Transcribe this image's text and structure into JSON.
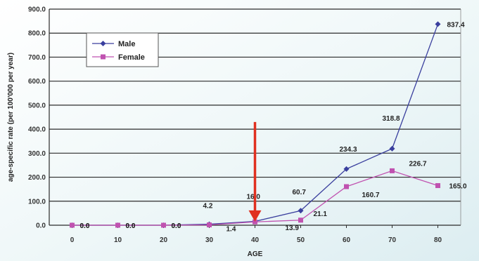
{
  "chart_data": {
    "type": "line",
    "xlabel": "AGE",
    "ylabel": "age-specific rate (per 100'000 per year)",
    "x": [
      0,
      10,
      20,
      30,
      40,
      50,
      60,
      70,
      80
    ],
    "xlim": [
      -5,
      85
    ],
    "ylim": [
      0,
      900
    ],
    "y_ticks": [
      "0.0",
      "100.0",
      "200.0",
      "300.0",
      "400.0",
      "500.0",
      "600.0",
      "700.0",
      "800.0",
      "900.0"
    ],
    "y_tick_values": [
      0,
      100,
      200,
      300,
      400,
      500,
      600,
      700,
      800,
      900
    ],
    "grid": true,
    "legend": "top-left",
    "series": [
      {
        "name": "Male",
        "color": "#3a3f9e",
        "marker": "diamond",
        "values": [
          0.0,
          0.0,
          0.0,
          4.2,
          16.0,
          60.7,
          234.3,
          318.8,
          837.4
        ],
        "labels": [
          "0.0",
          "0.0",
          "0.0",
          "4.2",
          "16.0",
          "60.7",
          "234.3",
          "318.8",
          "837.4"
        ]
      },
      {
        "name": "Female",
        "color": "#c052b0",
        "marker": "square",
        "values": [
          0.0,
          0.0,
          0.0,
          1.4,
          13.9,
          21.1,
          160.7,
          226.7,
          165.0
        ],
        "labels": [
          "0.0",
          "0.0",
          "0.0",
          "1.4",
          "13.9",
          "21.1",
          "160.7",
          "226.7",
          "165.0"
        ]
      }
    ],
    "annotations": [
      {
        "type": "arrow",
        "x": 40,
        "y_from": 430,
        "y_to": 15,
        "color": "#e03020"
      }
    ],
    "background": "#e6f2f4"
  }
}
